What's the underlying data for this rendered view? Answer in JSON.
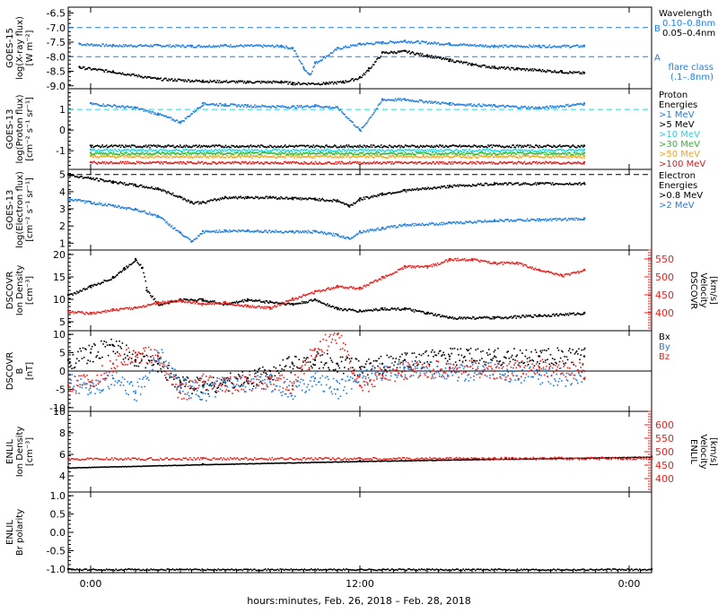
{
  "colors": {
    "black": "#000000",
    "blue": "#1f7fe0",
    "red": "#e8231f",
    "cyan": "#22d6e6",
    "green": "#2eb82e",
    "orange": "#f2a51f",
    "darkred": "#d61f1f"
  },
  "x_axis": {
    "title": "hours:minutes, Feb. 26, 2018 – Feb. 28, 2018",
    "range_hours": [
      -2,
      50
    ],
    "ticks": [
      {
        "h": 0,
        "label": "0:00"
      },
      {
        "h": 24,
        "label": "12:00"
      },
      {
        "h": 48,
        "label": "0:00"
      }
    ]
  },
  "chart_data": [
    {
      "id": "goes15_xray",
      "type": "scatter",
      "ylabel": [
        "GOES-15",
        "log(X-ray flux)",
        "[W m⁻²]"
      ],
      "ylim": [
        -9.1,
        -6.3
      ],
      "yticks": [
        "-6.5",
        "-7.0",
        "-7.5",
        "-8.0",
        "-8.5",
        "-9.0"
      ],
      "ytick_values": [
        -6.5,
        -7.0,
        -7.5,
        -8.0,
        -8.5,
        -9.0
      ],
      "reference_lines": [
        {
          "y": -7.0,
          "label": "B",
          "color": "#1f7fe0"
        },
        {
          "y": -8.0,
          "label": "A",
          "color": "#1f7fe0"
        }
      ],
      "legend": [
        {
          "text": "Wavelength",
          "color": "#000000"
        },
        {
          "text": "0.10–0.8nm",
          "color": "#1f7fe0"
        },
        {
          "text": "0.05–0.4nm",
          "color": "#000000"
        },
        {
          "text": "flare class",
          "color": "#1f7fe0"
        },
        {
          "text": "(.1–.8nm)",
          "color": "#1f7fe0"
        }
      ],
      "series": [
        {
          "color": "#1f7fe0",
          "x": [
            -1,
            2,
            6,
            9,
            12,
            17,
            18,
            19,
            19.5,
            20,
            22,
            24,
            26,
            28,
            32,
            36,
            40,
            44
          ],
          "y": [
            -7.55,
            -7.6,
            -7.6,
            -7.62,
            -7.6,
            -7.62,
            -7.7,
            -8.4,
            -8.6,
            -8.2,
            -7.7,
            -7.55,
            -7.5,
            -7.45,
            -7.55,
            -7.62,
            -7.62,
            -7.62
          ]
        },
        {
          "color": "#000000",
          "x": [
            -1,
            2,
            6,
            10,
            14,
            17,
            18,
            21,
            22.5,
            24,
            24.8,
            26,
            28,
            30,
            32,
            34,
            36,
            38,
            40,
            42,
            44
          ],
          "y": [
            -8.35,
            -8.5,
            -8.75,
            -8.82,
            -8.85,
            -8.85,
            -8.9,
            -8.9,
            -8.85,
            -8.7,
            -8.4,
            -7.85,
            -7.8,
            -7.95,
            -8.1,
            -8.25,
            -8.35,
            -8.4,
            -8.45,
            -8.5,
            -8.55
          ]
        }
      ]
    },
    {
      "id": "goes13_proton",
      "type": "scatter",
      "ylabel": [
        "GOES-13",
        "log(Proton flux)",
        "[cm⁻² s⁻¹ sr⁻¹]"
      ],
      "ylim": [
        -1.9,
        2.0
      ],
      "yticks": [
        "1",
        "0",
        "-1"
      ],
      "ytick_values": [
        1,
        0,
        -1
      ],
      "reference_lines": [
        {
          "y": 1.0,
          "color": "#22d6e6"
        }
      ],
      "legend": [
        {
          "text": "Proton",
          "color": "#000000"
        },
        {
          "text": "Energies",
          "color": "#000000"
        },
        {
          "text": ">1 MeV",
          "color": "#1f7fe0"
        },
        {
          "text": ">5 MeV",
          "color": "#000000"
        },
        {
          "text": ">10 MeV",
          "color": "#22d6e6"
        },
        {
          "text": ">30 MeV",
          "color": "#2eb82e"
        },
        {
          "text": ">50 MeV",
          "color": "#f2a51f"
        },
        {
          "text": ">100 MeV",
          "color": "#d61f1f"
        }
      ],
      "series": [
        {
          "color": "#1f7fe0",
          "x": [
            0,
            4,
            6,
            8,
            10,
            12,
            14,
            18,
            20,
            22,
            24,
            26,
            28,
            32,
            36,
            40,
            44
          ],
          "y": [
            1.3,
            1.1,
            0.8,
            0.4,
            1.3,
            1.25,
            1.2,
            1.15,
            1.2,
            1.1,
            0.0,
            1.5,
            1.5,
            1.3,
            1.2,
            1.1,
            1.3
          ]
        },
        {
          "color": "#000000",
          "x": [
            0,
            44
          ],
          "y": [
            -0.75,
            -0.75
          ]
        },
        {
          "color": "#22d6e6",
          "x": [
            0,
            44
          ],
          "y": [
            -0.95,
            -0.95
          ]
        },
        {
          "color": "#2eb82e",
          "x": [
            0,
            44
          ],
          "y": [
            -1.1,
            -1.1
          ]
        },
        {
          "color": "#f2a51f",
          "x": [
            0,
            44
          ],
          "y": [
            -1.25,
            -1.25
          ]
        },
        {
          "color": "#d61f1f",
          "x": [
            0,
            44
          ],
          "y": [
            -1.55,
            -1.55
          ]
        }
      ]
    },
    {
      "id": "goes13_electron",
      "type": "scatter",
      "ylabel": [
        "GOES-13",
        "log(Electron flux)",
        "[cm⁻² s⁻¹ sr⁻¹]"
      ],
      "ylim": [
        0.6,
        5.3
      ],
      "yticks": [
        "5",
        "4",
        "3",
        "2",
        "1"
      ],
      "ytick_values": [
        5,
        4,
        3,
        2,
        1
      ],
      "reference_lines": [
        {
          "y": 5.0,
          "color": "#000000"
        }
      ],
      "legend": [
        {
          "text": "Electron",
          "color": "#000000"
        },
        {
          "text": "Energies",
          "color": "#000000"
        },
        {
          "text": ">0.8 MeV",
          "color": "#000000"
        },
        {
          "text": ">2 MeV",
          "color": "#1f7fe0"
        }
      ],
      "series": [
        {
          "color": "#000000",
          "x": [
            -2,
            0,
            2,
            4,
            6,
            8,
            9,
            10,
            12,
            14,
            16,
            18,
            20,
            22,
            23,
            24,
            26,
            28,
            32,
            36,
            40,
            44
          ],
          "y": [
            5.0,
            4.8,
            4.6,
            4.4,
            4.2,
            3.7,
            3.4,
            3.4,
            3.7,
            3.7,
            3.7,
            3.65,
            3.6,
            3.5,
            3.2,
            3.6,
            3.9,
            4.1,
            4.35,
            4.5,
            4.5,
            4.5
          ]
        },
        {
          "color": "#1f7fe0",
          "x": [
            -2,
            0,
            2,
            4,
            6,
            8,
            9,
            10,
            12,
            14,
            18,
            20,
            22,
            23,
            24,
            26,
            28,
            32,
            36,
            40,
            44
          ],
          "y": [
            3.6,
            3.4,
            3.2,
            3.0,
            2.6,
            1.6,
            1.1,
            1.7,
            1.75,
            1.75,
            1.7,
            1.7,
            1.5,
            1.3,
            1.7,
            1.9,
            2.1,
            2.2,
            2.35,
            2.4,
            2.45
          ]
        }
      ]
    },
    {
      "id": "dscovr_density_velocity",
      "type": "scatter",
      "ylabel": [
        "DSCOVR",
        "Ion Density",
        "[cm⁻³]"
      ],
      "ylim": [
        3,
        21
      ],
      "yticks": [
        "20",
        "15",
        "10",
        "5"
      ],
      "ytick_values": [
        20,
        15,
        10,
        5
      ],
      "right_axis": {
        "ylabel": [
          "DSCOVR",
          "Velocity",
          "[km/s]"
        ],
        "ylim": [
          350,
          575
        ],
        "yticks": [
          "550",
          "500",
          "450",
          "400"
        ],
        "ytick_values": [
          550,
          500,
          450,
          400
        ],
        "color": "#e8231f"
      },
      "series": [
        {
          "color": "#000000",
          "axis": "left",
          "x": [
            -2,
            0,
            2,
            3,
            4,
            4.6,
            5,
            6,
            8,
            10,
            12,
            14,
            16,
            18,
            20,
            22,
            24,
            26,
            28,
            30,
            32,
            36,
            40,
            44
          ],
          "y": [
            11,
            13,
            15,
            17,
            19,
            17,
            12,
            9,
            10,
            10,
            9,
            10,
            9.5,
            9,
            10,
            8,
            7.5,
            8,
            8,
            7,
            6,
            6,
            6.5,
            7
          ]
        },
        {
          "color": "#e8231f",
          "axis": "right",
          "x": [
            -2,
            0,
            2,
            4,
            6,
            8,
            10,
            12,
            14,
            16,
            18,
            20,
            22,
            24,
            26,
            28,
            30,
            32,
            34,
            36,
            38,
            40,
            42,
            44
          ],
          "y": [
            405,
            400,
            410,
            415,
            430,
            435,
            425,
            430,
            420,
            415,
            440,
            460,
            475,
            470,
            500,
            530,
            530,
            550,
            550,
            540,
            540,
            520,
            505,
            520
          ]
        }
      ]
    },
    {
      "id": "dscovr_bfield",
      "type": "scatter",
      "ylabel": [
        "DSCOVR",
        "B",
        "[nT]"
      ],
      "ylim": [
        -11,
        11
      ],
      "yticks": [
        "10",
        "5",
        "0",
        "-5",
        "-10"
      ],
      "ytick_values": [
        10,
        5,
        0,
        -5,
        -10
      ],
      "reference_lines": [
        {
          "y": 0,
          "color": "#000000"
        }
      ],
      "legend": [
        {
          "text": "Bx",
          "color": "#000000"
        },
        {
          "text": "By",
          "color": "#1f7fe0"
        },
        {
          "text": "Bz",
          "color": "#e8231f"
        }
      ],
      "series": [
        {
          "color": "#000000",
          "x": [
            -2,
            0,
            2,
            4,
            6,
            8,
            10,
            12,
            14,
            16,
            18,
            20,
            22,
            24,
            26,
            28,
            32,
            36,
            40,
            44
          ],
          "y": [
            3,
            5,
            7,
            3,
            2,
            -3,
            -4,
            -3,
            -2,
            0,
            2,
            3,
            2,
            1,
            2,
            3,
            4,
            4,
            4,
            4
          ]
        },
        {
          "color": "#1f7fe0",
          "x": [
            -2,
            0,
            2,
            4,
            6,
            8,
            10,
            12,
            14,
            16,
            18,
            20,
            22,
            24,
            26,
            28,
            32,
            36,
            40,
            44
          ],
          "y": [
            -3,
            -4,
            -2,
            -6,
            5,
            -4,
            -6,
            -3,
            -3,
            -3,
            -5,
            -2,
            -5,
            -1,
            0,
            1,
            0,
            0,
            -1,
            -2
          ]
        },
        {
          "color": "#e8231f",
          "x": [
            -2,
            0,
            2,
            4,
            6,
            8,
            10,
            12,
            14,
            16,
            18,
            20,
            22,
            24,
            26,
            28,
            32,
            36,
            40,
            44
          ],
          "y": [
            -4,
            -3,
            2,
            5,
            4,
            -6,
            -3,
            -4,
            -3,
            -2,
            -4,
            6,
            10,
            -4,
            -1,
            0,
            1,
            0,
            1,
            0
          ]
        }
      ]
    },
    {
      "id": "enlil_density_velocity",
      "type": "scatter",
      "ylabel": [
        "ENLIL",
        "Ion Density",
        "[cm⁻³]"
      ],
      "ylim": [
        2.5,
        10
      ],
      "yticks": [
        "10",
        "8",
        "6",
        "4"
      ],
      "ytick_values": [
        10,
        8,
        6,
        4
      ],
      "right_axis": {
        "ylabel": [
          "ENLIL",
          "Velocity",
          "[km/s]"
        ],
        "ylim": [
          350,
          650
        ],
        "yticks": [
          "600",
          "550",
          "500",
          "450",
          "400"
        ],
        "ytick_values": [
          600,
          550,
          500,
          450,
          400
        ],
        "color": "#e8231f"
      },
      "series": [
        {
          "color": "#000000",
          "axis": "left",
          "x": [
            -2,
            10,
            24,
            36,
            50
          ],
          "y": [
            4.8,
            5.1,
            5.4,
            5.6,
            5.8
          ]
        },
        {
          "color": "#e8231f",
          "axis": "right",
          "x": [
            -2,
            10,
            24,
            36,
            50
          ],
          "y": [
            475,
            476,
            476,
            477,
            478
          ]
        }
      ]
    },
    {
      "id": "enlil_polarity",
      "type": "scatter",
      "ylabel": [
        "ENLIL",
        "Br polarity"
      ],
      "ylim": [
        -1.1,
        1.1
      ],
      "yticks": [
        "1.0",
        "0.5",
        "0.0",
        "-0.5",
        "-1.0"
      ],
      "ytick_values": [
        1.0,
        0.5,
        0.0,
        -0.5,
        -1.0
      ],
      "series": [
        {
          "color": "#000000",
          "x": [
            -2,
            50
          ],
          "y": [
            -1.0,
            -1.0
          ]
        }
      ]
    }
  ]
}
